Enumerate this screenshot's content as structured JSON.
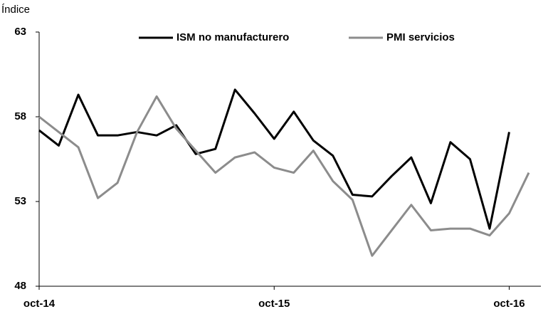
{
  "chart_data": {
    "type": "line",
    "y_label": "Índice",
    "categories": [
      "oct-14",
      null,
      null,
      null,
      null,
      null,
      null,
      null,
      null,
      null,
      null,
      null,
      "oct-15",
      null,
      null,
      null,
      null,
      null,
      null,
      null,
      null,
      null,
      null,
      null,
      "oct-16",
      null
    ],
    "series": [
      {
        "name": "ISM no manufacturero",
        "color": "#000000",
        "values": [
          57.2,
          56.3,
          59.3,
          56.9,
          56.9,
          57.1,
          56.9,
          57.5,
          55.8,
          56.1,
          59.6,
          58.2,
          56.7,
          58.3,
          56.6,
          55.7,
          53.4,
          53.3,
          54.5,
          55.6,
          52.9,
          56.5,
          55.5,
          51.4,
          57.1,
          null
        ]
      },
      {
        "name": "PMI servicios",
        "color": "#8c8c8c",
        "values": [
          58.0,
          57.1,
          56.2,
          53.2,
          54.1,
          57.1,
          59.2,
          57.3,
          56.0,
          54.7,
          55.6,
          55.9,
          55.0,
          54.7,
          56.0,
          54.2,
          53.1,
          49.8,
          51.3,
          52.8,
          51.3,
          51.4,
          51.4,
          51.0,
          52.3,
          54.7
        ]
      }
    ],
    "ylim": [
      48,
      63
    ],
    "yticks": [
      48,
      53,
      58,
      63
    ],
    "legend": "top"
  }
}
